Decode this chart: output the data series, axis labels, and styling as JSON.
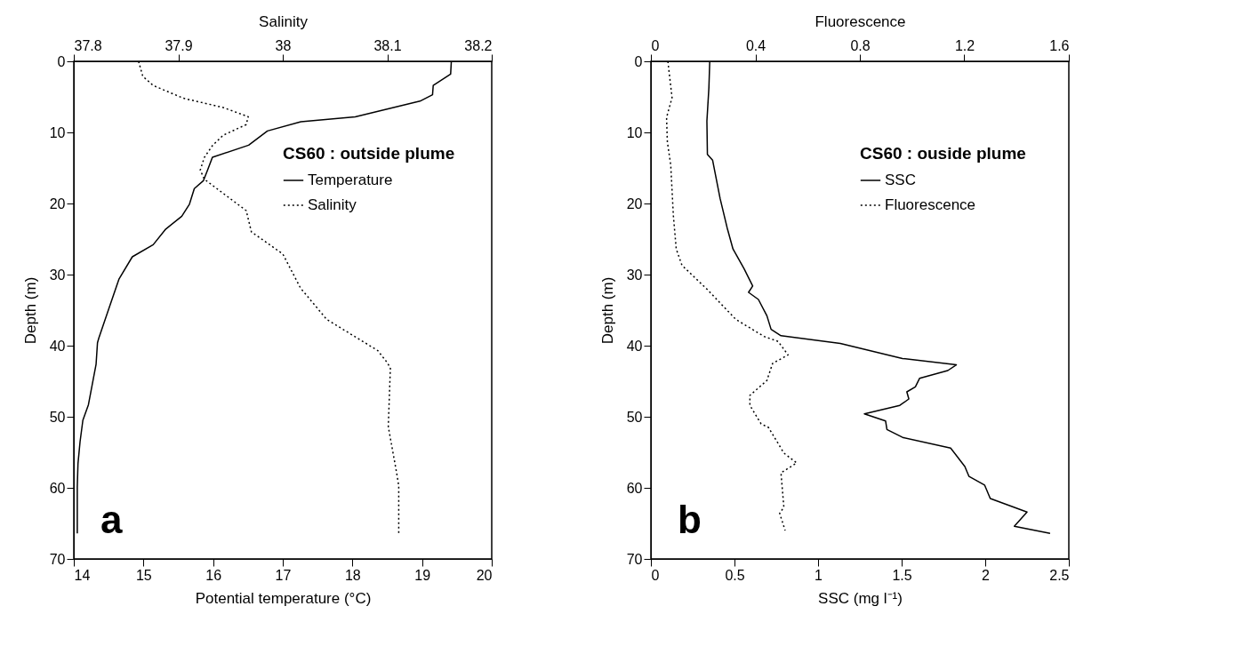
{
  "chart_data": [
    {
      "type": "line",
      "xlabel": "Potential temperature (°C)",
      "x2label": "Salinity",
      "ylabel": "Depth (m)",
      "legend_title": "CS60 : outside plume",
      "legend": "top right",
      "grid": false,
      "annotations": [
        "a"
      ],
      "xlim": [
        14,
        20
      ],
      "xticks": [
        14,
        15,
        16,
        17,
        18,
        19,
        20
      ],
      "x2lim": [
        37.8,
        38.2
      ],
      "x2ticks": [
        37.8,
        37.9,
        38,
        38.1,
        38.2
      ],
      "ylim": [
        70,
        0
      ],
      "yticks": [
        0,
        10,
        20,
        30,
        40,
        50,
        60,
        70
      ],
      "series": [
        {
          "name": "Temperature",
          "color": "#000000",
          "line_style": "solid",
          "x": [
            19.42,
            19.41,
            19.16,
            19.15,
            18.97,
            18.04,
            17.26,
            16.78,
            16.51,
            15.99,
            15.92,
            15.86,
            15.73,
            15.66,
            15.55,
            15.32,
            15.14,
            14.84,
            14.65,
            14.51,
            14.36,
            14.34,
            14.32,
            14.21,
            14.13,
            14.09,
            14.06,
            14.05,
            14.05
          ],
          "values": [
            0,
            1.8,
            3.4,
            4.7,
            5.6,
            7.8,
            8.5,
            9.8,
            11.8,
            13.5,
            15.3,
            16.8,
            17.9,
            20.1,
            21.8,
            23.6,
            25.8,
            27.5,
            30.6,
            34.6,
            38.9,
            39.6,
            42.6,
            48.3,
            50.5,
            53.5,
            56.6,
            59.9,
            66.4
          ]
        },
        {
          "name": "Salinity",
          "color": "#000000",
          "line_style": "dotted",
          "axis": "x2",
          "x": [
            37.862,
            37.866,
            37.876,
            37.905,
            37.943,
            37.967,
            37.965,
            37.943,
            37.933,
            37.925,
            37.921,
            37.925,
            37.965,
            37.97,
            38,
            38.017,
            38.042,
            38.091,
            38.099,
            38.103,
            38.101,
            38.109,
            38.111,
            38.111
          ],
          "values": [
            0,
            2.1,
            3.4,
            5.2,
            6.5,
            7.8,
            8.9,
            10.4,
            11.8,
            13.5,
            15.3,
            16.6,
            21,
            24,
            27.1,
            31.9,
            36.3,
            40.7,
            42.2,
            43.1,
            51.4,
            57.9,
            59.7,
            66.6
          ]
        }
      ]
    },
    {
      "type": "line",
      "xlabel": "SSC (mg l⁻¹)",
      "x2label": "Fluorescence",
      "ylabel": "Depth (m)",
      "legend_title": "CS60 : ouside plume",
      "legend": "top right",
      "grid": false,
      "annotations": [
        "b"
      ],
      "xlim": [
        0,
        2.5
      ],
      "xticks": [
        0,
        0.5,
        1,
        1.5,
        2,
        2.5
      ],
      "x2lim": [
        0,
        1.6
      ],
      "x2ticks": [
        0,
        0.4,
        0.8,
        1.2,
        1.6
      ],
      "ylim": [
        70,
        0
      ],
      "yticks": [
        0,
        10,
        20,
        30,
        40,
        50,
        60,
        70
      ],
      "series": [
        {
          "name": "SSC",
          "color": "#000000",
          "line_style": "solid",
          "x": [
            0.352,
            0.347,
            0.335,
            0.338,
            0.369,
            0.414,
            0.457,
            0.491,
            0.558,
            0.609,
            0.584,
            0.643,
            0.694,
            0.719,
            0.778,
            1.133,
            1.505,
            1.827,
            1.776,
            1.607,
            1.582,
            1.531,
            1.543,
            1.489,
            1.277,
            1.404,
            1.412,
            1.505,
            1.793,
            1.878,
            1.903,
            1.996,
            2.03,
            2.25,
            2.174,
            2.388
          ],
          "values": [
            0,
            3.7,
            8.4,
            13.1,
            13.9,
            19.3,
            23.5,
            26.4,
            29.2,
            31.6,
            32.5,
            33.5,
            35.8,
            37.7,
            38.6,
            39.7,
            41.8,
            42.7,
            43.5,
            44.6,
            45.8,
            46.5,
            47.5,
            48.4,
            49.6,
            50.6,
            51.8,
            52.9,
            54.4,
            57,
            58.4,
            59.6,
            61.5,
            63.4,
            65.4,
            66.4
          ]
        },
        {
          "name": "Fluorescence",
          "color": "#000000",
          "line_style": "dotted",
          "axis": "x2",
          "x": [
            0.065,
            0.081,
            0.06,
            0.063,
            0.076,
            0.086,
            0.097,
            0.119,
            0.216,
            0.325,
            0.433,
            0.487,
            0.525,
            0.466,
            0.444,
            0.379,
            0.379,
            0.422,
            0.45,
            0.509,
            0.558,
            0.498,
            0.509,
            0.493,
            0.514
          ],
          "values": [
            0,
            5.1,
            7.9,
            11.3,
            14.6,
            21.7,
            26.4,
            28.7,
            32.1,
            36.3,
            38.7,
            39.4,
            41.3,
            42.5,
            44.9,
            47,
            48.4,
            51,
            51.5,
            55.1,
            56.5,
            57.9,
            62.7,
            63.6,
            66
          ]
        }
      ]
    }
  ]
}
